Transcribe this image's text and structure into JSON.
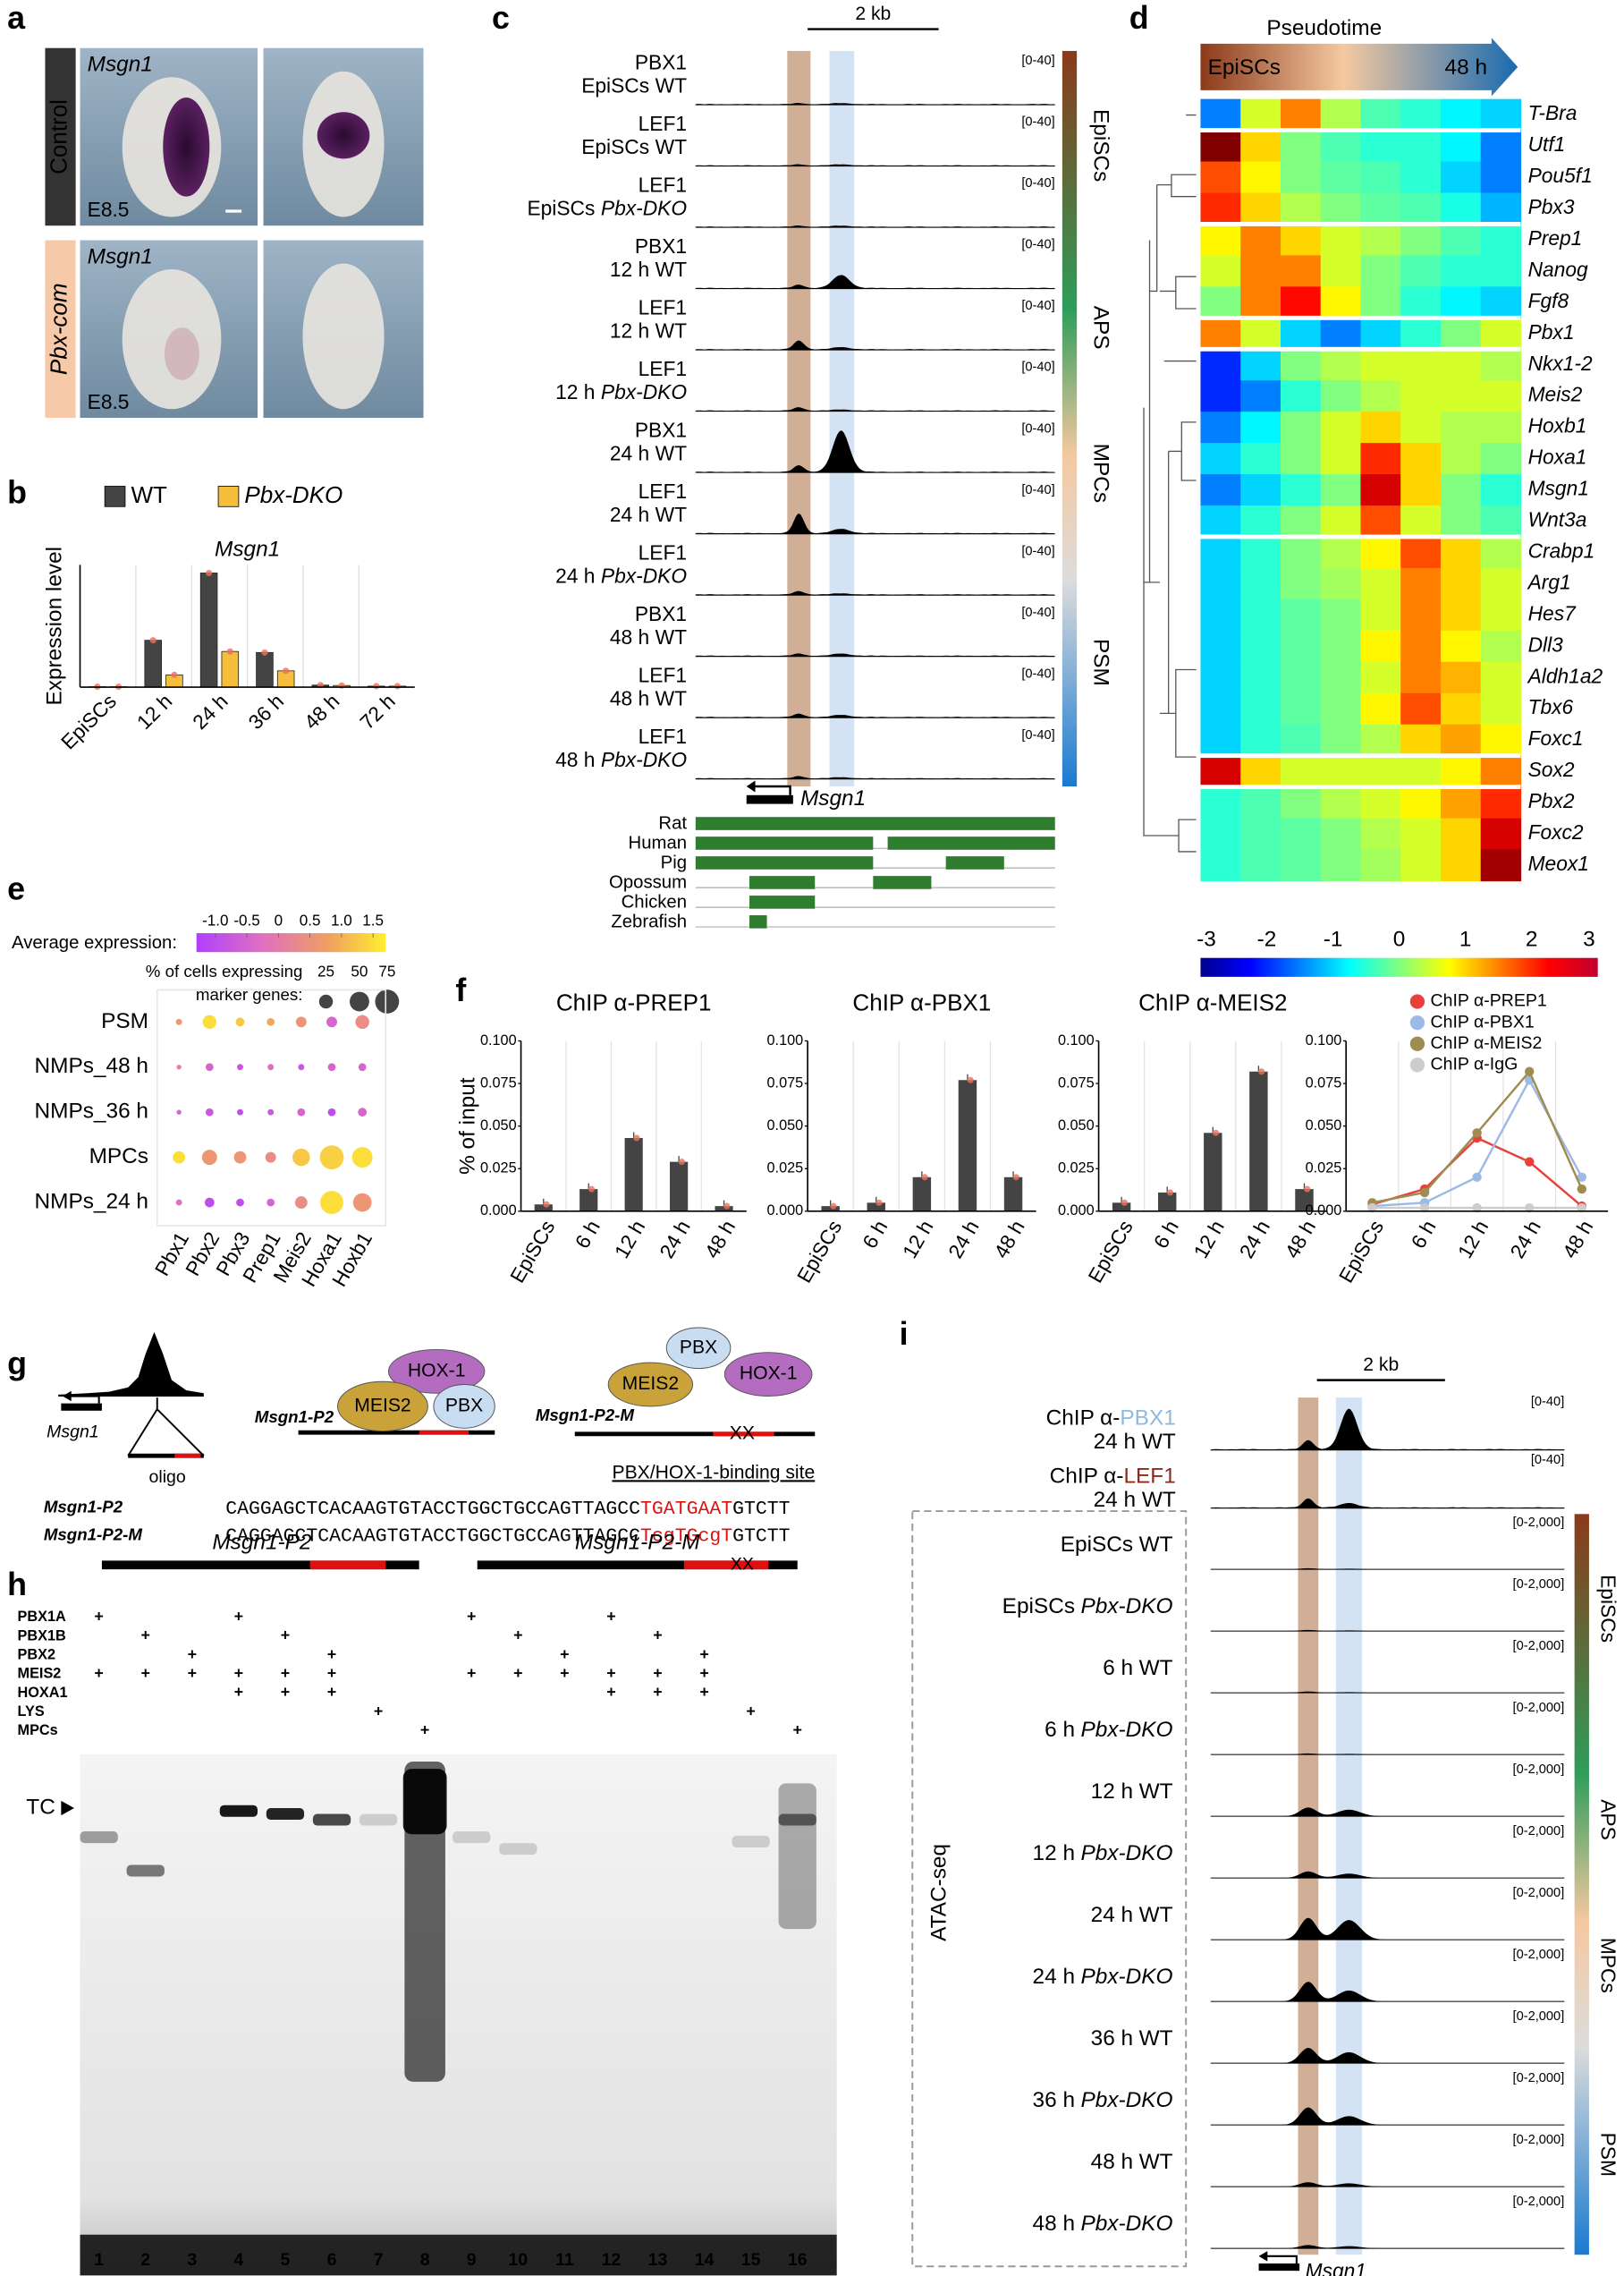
{
  "panel_a": {
    "letter": "a",
    "gene": "Msgn1",
    "rows": [
      "Control",
      "Pbx-com"
    ],
    "stage": "E8.5"
  },
  "panel_b": {
    "letter": "b",
    "type": "bar",
    "title": "Msgn1",
    "y_label": "Expression level",
    "categories": [
      "EpiSCs",
      "12 h",
      "24 h",
      "36 h",
      "48 h",
      "72 h"
    ],
    "series": [
      {
        "name": "WT",
        "color": "#444444",
        "values": [
          0.02,
          2.3,
          5.6,
          1.7,
          0.1,
          0.05
        ]
      },
      {
        "name": "Pbx-DKO",
        "color": "#f5bf3c",
        "values": [
          0.02,
          0.6,
          1.75,
          0.8,
          0.08,
          0.05
        ]
      }
    ],
    "ylim": [
      0,
      6
    ]
  },
  "panel_c": {
    "letter": "c",
    "scale": "2 kb",
    "gene": "Msgn1",
    "stages": [
      "EpiSCs",
      "APS",
      "MPCs",
      "PSM"
    ],
    "species": [
      "Rat",
      "Human",
      "Pig",
      "Opossum",
      "Chicken",
      "Zebrafish"
    ],
    "tracks": [
      {
        "factor": "PBX1",
        "time": "EpiSCs",
        "genotype": "WT",
        "range": {
          "value": 40,
          "label": "[0-40]"
        },
        "signal": [
          1,
          1
        ]
      },
      {
        "factor": "LEF1",
        "time": "EpiSCs",
        "genotype": "WT",
        "range": {
          "value": 40,
          "label": "[0-40]"
        },
        "signal": [
          1,
          1
        ]
      },
      {
        "factor": "LEF1",
        "time": "EpiSCs",
        "genotype": "Pbx-DKO",
        "range": {
          "value": 40,
          "label": "[0-40]"
        },
        "signal": [
          1,
          1
        ]
      },
      {
        "factor": "PBX1",
        "time": "12 h",
        "genotype": "WT",
        "range": {
          "value": 40,
          "label": "[0-40]"
        },
        "signal": [
          3,
          12
        ]
      },
      {
        "factor": "LEF1",
        "time": "12 h",
        "genotype": "WT",
        "range": {
          "value": 40,
          "label": "[0-40]"
        },
        "signal": [
          8,
          2
        ]
      },
      {
        "factor": "LEF1",
        "time": "12 h",
        "genotype": "Pbx-DKO",
        "range": {
          "value": 40,
          "label": "[0-40]"
        },
        "signal": [
          3,
          1
        ]
      },
      {
        "factor": "PBX1",
        "time": "24 h",
        "genotype": "WT",
        "range": {
          "value": 40,
          "label": "[0-40]"
        },
        "signal": [
          6,
          38
        ]
      },
      {
        "factor": "LEF1",
        "time": "24 h",
        "genotype": "WT",
        "range": {
          "value": 40,
          "label": "[0-40]"
        },
        "signal": [
          18,
          4
        ]
      },
      {
        "factor": "LEF1",
        "time": "24 h",
        "genotype": "Pbx-DKO",
        "range": {
          "value": 40,
          "label": "[0-40]"
        },
        "signal": [
          3,
          1
        ]
      },
      {
        "factor": "PBX1",
        "time": "48 h",
        "genotype": "WT",
        "range": {
          "value": 40,
          "label": "[0-40]"
        },
        "signal": [
          2,
          2
        ]
      },
      {
        "factor": "LEF1",
        "time": "48 h",
        "genotype": "WT",
        "range": {
          "value": 40,
          "label": "[0-40]"
        },
        "signal": [
          3,
          2
        ]
      },
      {
        "factor": "LEF1",
        "time": "48 h",
        "genotype": "Pbx-DKO",
        "range": {
          "value": 40,
          "label": "[0-40]"
        },
        "signal": [
          2,
          1
        ]
      }
    ]
  },
  "panel_d": {
    "letter": "d",
    "type": "heatmap",
    "title": "Pseudotime",
    "start": "EpiSCs",
    "end": "48 h",
    "clim": [
      -3,
      3
    ],
    "cticks": [
      -3,
      -2,
      -1,
      0,
      1,
      2,
      3
    ],
    "genes": [
      "T-Bra",
      "Utf1",
      "Pou5f1",
      "Pbx3",
      "Prep1",
      "Nanog",
      "Fgf8",
      "Pbx1",
      "Nkx1-2",
      "Meis2",
      "Hoxb1",
      "Hoxa1",
      "Msgn1",
      "Wnt3a",
      "Crabp1",
      "Arg1",
      "Hes7",
      "Dll3",
      "Aldh1a2",
      "Tbx6",
      "Foxc1",
      "Sox2",
      "Pbx2",
      "Foxc2",
      "Meox1"
    ],
    "values": [
      [
        -1.5,
        0.5,
        1.5,
        0.3,
        -0.3,
        -0.5,
        -0.8,
        -1
      ],
      [
        3,
        1,
        0,
        -0.3,
        -0.5,
        -0.5,
        -0.8,
        -1.5
      ],
      [
        1.8,
        0.8,
        0,
        -0.2,
        -0.3,
        -0.5,
        -1,
        -1.5
      ],
      [
        2,
        1,
        0.3,
        0,
        -0.2,
        -0.3,
        -0.6,
        -1.2
      ],
      [
        0.8,
        1.5,
        1,
        0.5,
        0.3,
        0,
        -0.3,
        -0.5
      ],
      [
        0.5,
        1.5,
        1.5,
        0.5,
        0,
        -0.3,
        -0.5,
        -0.5
      ],
      [
        0,
        1.5,
        2.2,
        0.8,
        0,
        -0.5,
        -0.8,
        -1
      ],
      [
        1.5,
        0.5,
        -1,
        -1.5,
        -1,
        -0.5,
        0,
        0.5
      ],
      [
        -2,
        -1,
        0,
        0.3,
        0.5,
        0.5,
        0.5,
        0.3
      ],
      [
        -2,
        -1.5,
        -0.5,
        0,
        0.3,
        0.5,
        0.5,
        0.5
      ],
      [
        -1.5,
        -0.8,
        0,
        0.5,
        1,
        0.5,
        0.3,
        0.3
      ],
      [
        -1,
        -0.5,
        0,
        0.5,
        2,
        1,
        0.3,
        0
      ],
      [
        -1.5,
        -1,
        -0.5,
        0,
        2.5,
        1,
        0,
        -0.5
      ],
      [
        -1,
        -0.5,
        0,
        0.5,
        1.8,
        0.5,
        0,
        -0.3
      ],
      [
        -1,
        -0.5,
        0,
        0.3,
        0.8,
        1.8,
        1,
        0.3
      ],
      [
        -1,
        -0.5,
        0,
        0.2,
        0.5,
        1.5,
        1,
        0.5
      ],
      [
        -1,
        -0.5,
        -0.2,
        0,
        0.5,
        1.5,
        1,
        0.5
      ],
      [
        -1,
        -0.5,
        -0.2,
        0,
        0.8,
        1.5,
        0.8,
        0.3
      ],
      [
        -1,
        -0.5,
        -0.2,
        0,
        0.5,
        1.5,
        1.2,
        0.5
      ],
      [
        -1,
        -0.5,
        -0.2,
        0,
        0.8,
        1.8,
        1,
        0.5
      ],
      [
        -1,
        -0.5,
        -0.3,
        0,
        0.3,
        1,
        1.3,
        0.8
      ],
      [
        2.5,
        1,
        0.5,
        0.5,
        0.5,
        0.5,
        0.8,
        1.5
      ],
      [
        -0.5,
        -0.3,
        0,
        0.3,
        0.5,
        0.8,
        1.3,
        2
      ],
      [
        -0.5,
        -0.3,
        -0.2,
        0,
        0.3,
        0.5,
        1,
        2.5
      ],
      [
        -0.5,
        -0.3,
        -0.2,
        0,
        0.2,
        0.5,
        1,
        2.8
      ]
    ]
  },
  "panel_e": {
    "letter": "e",
    "type": "dotplot",
    "color_title": "Average expression:",
    "clim": [
      -1.3,
      1.7
    ],
    "cticks": [
      {
        "value": -1,
        "label": "-1.0"
      },
      -0.5,
      0,
      0.5,
      {
        "value": 1,
        "label": "1.0"
      },
      1.5
    ],
    "size_title": [
      "% of cells expressing",
      "marker genes:"
    ],
    "size_ticks": [
      25,
      50,
      75
    ],
    "rows": [
      "PSM",
      "NMPs_48 h",
      "NMPs_36 h",
      "MPCs",
      "NMPs_24 h"
    ],
    "cols": [
      "Pbx1",
      "Pbx2",
      "Pbx3",
      "Prep1",
      "Meis2",
      "Hoxa1",
      "Hoxb1"
    ],
    "expression": [
      [
        0.5,
        1.5,
        1.2,
        0.8,
        0.5,
        -0.5,
        0.3
      ],
      [
        0,
        -0.5,
        -0.8,
        -0.3,
        -0.8,
        -0.5,
        -0.5
      ],
      [
        -0.5,
        -0.8,
        -1,
        -0.8,
        -0.5,
        -1,
        -0.5
      ],
      [
        1.5,
        0.5,
        0.5,
        0.3,
        1.2,
        1.3,
        1.5
      ],
      [
        -0.3,
        -1,
        -1,
        -0.5,
        0.3,
        1.5,
        0.5
      ]
    ],
    "percent": [
      [
        5,
        25,
        10,
        8,
        15,
        15,
        25
      ],
      [
        3,
        8,
        5,
        5,
        5,
        8,
        8
      ],
      [
        3,
        8,
        5,
        5,
        8,
        8,
        10
      ],
      [
        20,
        30,
        20,
        15,
        40,
        75,
        55
      ],
      [
        5,
        12,
        8,
        8,
        20,
        70,
        45
      ]
    ]
  },
  "panel_f": {
    "letter": "f",
    "y_label": "% of input",
    "categories": [
      "EpiSCs",
      "6 h",
      "12 h",
      "24 h",
      "48 h"
    ],
    "ylim": [
      0,
      0.1
    ],
    "yticks": [
      {
        "value": 0,
        "label": "0.000"
      },
      {
        "value": 0.025,
        "label": "0.025"
      },
      {
        "value": 0.05,
        "label": "0.050"
      },
      {
        "value": 0.075,
        "label": "0.075"
      },
      {
        "value": 0.1,
        "label": "0.100"
      }
    ],
    "charts": [
      {
        "type": "bar",
        "title": "ChIP α-PREP1",
        "color": "#444444",
        "values": [
          0.004,
          0.013,
          0.043,
          0.029,
          0.003
        ]
      },
      {
        "type": "bar",
        "title": "ChIP α-PBX1",
        "color": "#444444",
        "values": [
          0.003,
          0.005,
          0.02,
          0.077,
          0.02
        ]
      },
      {
        "type": "bar",
        "title": "ChIP α-MEIS2",
        "color": "#444444",
        "values": [
          0.005,
          0.011,
          0.046,
          0.082,
          0.013
        ]
      },
      {
        "type": "line",
        "series": [
          {
            "name": "ChIP α-PREP1",
            "color": "#e8413c",
            "values": [
              0.004,
              0.013,
              0.043,
              0.029,
              0.003
            ]
          },
          {
            "name": "ChIP α-PBX1",
            "color": "#9bbbe6",
            "values": [
              0.003,
              0.005,
              0.02,
              0.077,
              0.02
            ]
          },
          {
            "name": "ChIP α-MEIS2",
            "color": "#a08c50",
            "values": [
              0.005,
              0.011,
              0.046,
              0.082,
              0.013
            ]
          },
          {
            "name": "ChIP α-IgG",
            "color": "#cccccc",
            "values": [
              0.002,
              0.002,
              0.002,
              0.002,
              0.002
            ]
          }
        ]
      }
    ]
  },
  "panel_g": {
    "letter": "g",
    "gene": "Msgn1",
    "oligo": "oligo",
    "probes": [
      "Msgn1-P2",
      "Msgn1-P2-M"
    ],
    "proteins": [
      "HOX-1",
      "MEIS2",
      "PBX"
    ],
    "mutation": "XX",
    "site": "PBX/HOX-1-binding site",
    "sequences": [
      {
        "name": "Msgn1-P2",
        "prefix": "CAGGAGCTCACAAGTGTACCTGGCTGCCAGTTAGCC",
        "site": "TGATGAAT",
        "suffix": "GTCTT"
      },
      {
        "name": "Msgn1-P2-M",
        "prefix": "CAGGAGCTCACAAGTGTACCTGGCTGCCAGTTAGCC",
        "site": "TcgTGcgT",
        "suffix": "GTCTT"
      }
    ]
  },
  "panel_h": {
    "letter": "h",
    "probes": [
      "Msgn1-P2",
      "Msgn1-P2-M"
    ],
    "mutation": "XX",
    "complex": "TC",
    "lanes": [
      1,
      2,
      3,
      4,
      5,
      6,
      7,
      8,
      9,
      10,
      11,
      12,
      13,
      14,
      15,
      16
    ],
    "rows": [
      {
        "name": "PBX1A",
        "marks": [
          "+",
          null,
          null,
          "+",
          null,
          null,
          null,
          null,
          "+",
          null,
          null,
          "+",
          null,
          null,
          null,
          null
        ]
      },
      {
        "name": "PBX1B",
        "marks": [
          null,
          "+",
          null,
          null,
          "+",
          null,
          null,
          null,
          null,
          "+",
          null,
          null,
          "+",
          null,
          null,
          null
        ]
      },
      {
        "name": "PBX2",
        "marks": [
          null,
          null,
          "+",
          null,
          null,
          "+",
          null,
          null,
          null,
          null,
          "+",
          null,
          null,
          "+",
          null,
          null
        ]
      },
      {
        "name": "MEIS2",
        "marks": [
          "+",
          "+",
          "+",
          "+",
          "+",
          "+",
          null,
          null,
          "+",
          "+",
          "+",
          "+",
          "+",
          "+",
          null,
          null
        ]
      },
      {
        "name": "HOXA1",
        "marks": [
          null,
          null,
          null,
          "+",
          "+",
          "+",
          null,
          null,
          null,
          null,
          null,
          "+",
          "+",
          "+",
          null,
          null
        ]
      },
      {
        "name": "LYS",
        "marks": [
          null,
          null,
          null,
          null,
          null,
          null,
          "+",
          null,
          null,
          null,
          null,
          null,
          null,
          null,
          "+",
          null
        ]
      },
      {
        "name": "MPCs",
        "marks": [
          null,
          null,
          null,
          null,
          null,
          null,
          null,
          "+",
          null,
          null,
          null,
          null,
          null,
          null,
          null,
          "+"
        ]
      }
    ]
  },
  "panel_i": {
    "letter": "i",
    "scale": "2 kb",
    "gene": "Msgn1",
    "atac_label": "ATAC-seq",
    "stages": [
      "EpiSCs",
      "APS",
      "MPCs",
      "PSM"
    ],
    "chip": [
      {
        "prefix": "ChIP α-",
        "factor": "PBX1",
        "sample": "24 h WT",
        "range": {
          "value": 40,
          "label": "[0-40]"
        },
        "signal": [
          8,
          35
        ]
      },
      {
        "prefix": "ChIP α-",
        "factor": "LEF1",
        "sample": "24 h WT",
        "range": {
          "value": 40,
          "label": "[0-40]"
        },
        "signal": [
          8,
          4
        ]
      }
    ],
    "atac": [
      {
        "time": "EpiSCs",
        "genotype": "WT",
        "range": {
          "value": 2000,
          "label": "[0-2,000]"
        },
        "signal": [
          50,
          30
        ]
      },
      {
        "time": "EpiSCs",
        "genotype": "Pbx-DKO",
        "range": {
          "value": 2000,
          "label": "[0-2,000]"
        },
        "signal": [
          50,
          30
        ]
      },
      {
        "time": "6 h",
        "genotype": "WT",
        "range": {
          "value": 2000,
          "label": "[0-2,000]"
        },
        "signal": [
          60,
          30
        ]
      },
      {
        "time": "6 h",
        "genotype": "Pbx-DKO",
        "range": {
          "value": 2000,
          "label": "[0-2,000]"
        },
        "signal": [
          50,
          30
        ]
      },
      {
        "time": "12 h",
        "genotype": "WT",
        "range": {
          "value": 2000,
          "label": "[0-2,000]"
        },
        "signal": [
          400,
          300
        ]
      },
      {
        "time": "12 h",
        "genotype": "Pbx-DKO",
        "range": {
          "value": 2000,
          "label": "[0-2,000]"
        },
        "signal": [
          300,
          200
        ]
      },
      {
        "time": "24 h",
        "genotype": "WT",
        "range": {
          "value": 2000,
          "label": "[0-2,000]"
        },
        "signal": [
          1000,
          900
        ]
      },
      {
        "time": "24 h",
        "genotype": "Pbx-DKO",
        "range": {
          "value": 2000,
          "label": "[0-2,000]"
        },
        "signal": [
          900,
          500
        ]
      },
      {
        "time": "36 h",
        "genotype": "WT",
        "range": {
          "value": 2000,
          "label": "[0-2,000]"
        },
        "signal": [
          700,
          500
        ]
      },
      {
        "time": "36 h",
        "genotype": "Pbx-DKO",
        "range": {
          "value": 2000,
          "label": "[0-2,000]"
        },
        "signal": [
          800,
          400
        ]
      },
      {
        "time": "48 h",
        "genotype": "WT",
        "range": {
          "value": 2000,
          "label": "[0-2,000]"
        },
        "signal": [
          200,
          150
        ]
      },
      {
        "time": "48 h",
        "genotype": "Pbx-DKO",
        "range": {
          "value": 2000,
          "label": "[0-2,000]"
        },
        "signal": [
          150,
          100
        ]
      }
    ]
  }
}
